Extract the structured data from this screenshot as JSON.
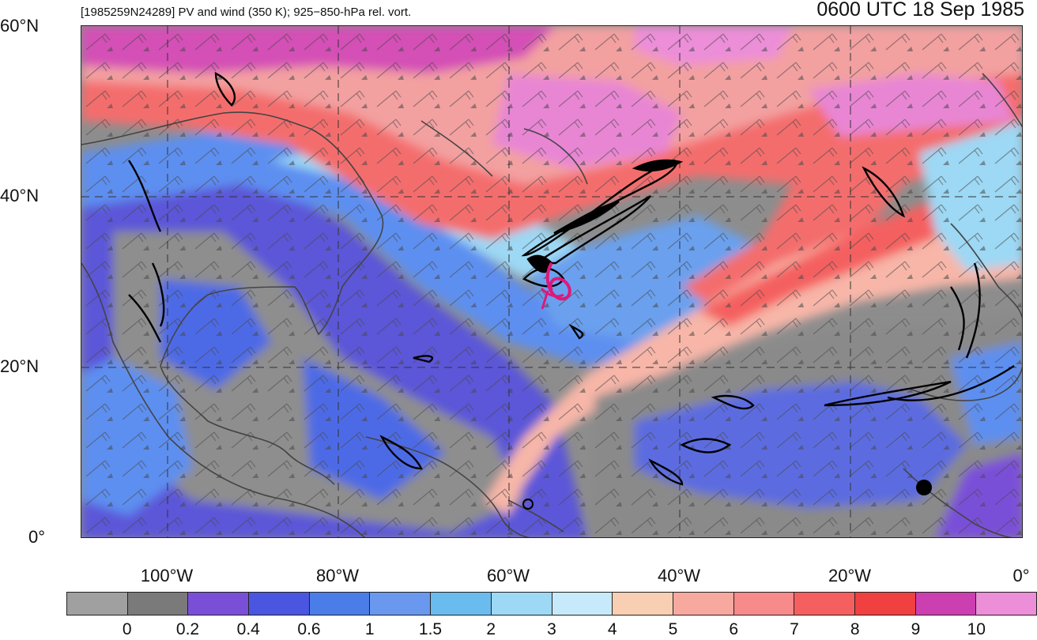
{
  "header": {
    "title": "[1985259N24289] PV and wind (350 K); 925−850-hPa rel. vort.",
    "time": "0600 UTC 18 Sep 1985"
  },
  "axes": {
    "lat_labels": [
      "60°N",
      "40°N",
      "20°N",
      "0°"
    ],
    "lon_labels": [
      "100°W",
      "80°W",
      "60°W",
      "40°W",
      "20°W",
      "0°"
    ]
  },
  "colorbar": {
    "colors": [
      "#a0a0a0",
      "#7a7a7a",
      "#7a4fd8",
      "#4a55e0",
      "#4a7de8",
      "#6a98ee",
      "#6bbcee",
      "#9dd8f4",
      "#c6eafa",
      "#f9cfb4",
      "#f7a9a0",
      "#f78a8a",
      "#f65f5f",
      "#f04040",
      "#cc3fb0",
      "#ec8ed8"
    ],
    "ticks": [
      "0",
      "0.2",
      "0.4",
      "0.6",
      "1",
      "1.5",
      "2",
      "3",
      "4",
      "5",
      "6",
      "7",
      "8",
      "9",
      "10"
    ]
  },
  "storm": {
    "symbol": "6",
    "color": "#e0177a"
  },
  "colors": {
    "grid": "#222222",
    "land_outline": "#444444",
    "vort_contour": "#000000"
  }
}
